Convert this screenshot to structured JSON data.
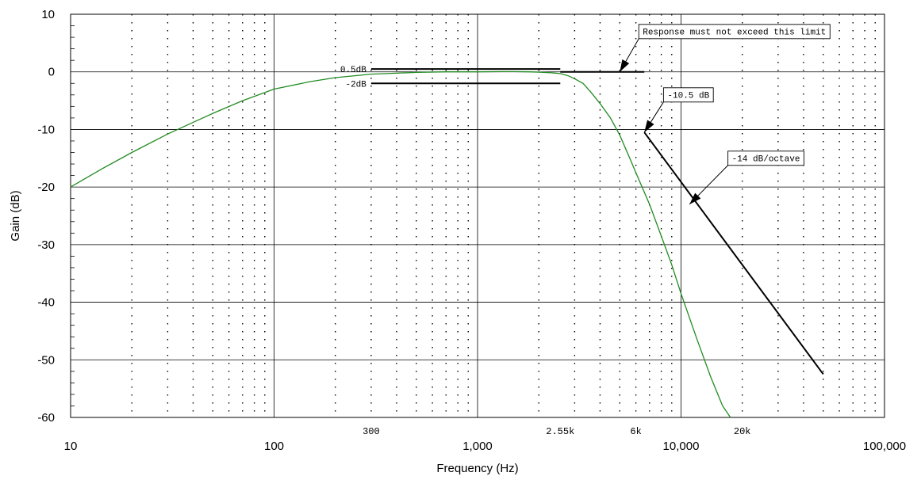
{
  "chart_data": {
    "type": "line",
    "xlabel": "Frequency (Hz)",
    "ylabel": "Gain (dB)",
    "x_scale": "log",
    "xlim": [
      10,
      100000
    ],
    "ylim": [
      -60,
      10
    ],
    "grid": true,
    "x_tick_labels": [
      {
        "value": 10,
        "label": "10"
      },
      {
        "value": 100,
        "label": "100"
      },
      {
        "value": 1000,
        "label": "1,000"
      },
      {
        "value": 10000,
        "label": "10,000"
      },
      {
        "value": 100000,
        "label": "100,000"
      }
    ],
    "y_tick_labels": [
      {
        "value": 10,
        "label": "10"
      },
      {
        "value": 0,
        "label": "0"
      },
      {
        "value": -10,
        "label": "-10"
      },
      {
        "value": -20,
        "label": "-20"
      },
      {
        "value": -30,
        "label": "-30"
      },
      {
        "value": -40,
        "label": "-40"
      },
      {
        "value": -50,
        "label": "-50"
      },
      {
        "value": -60,
        "label": "-60"
      }
    ],
    "frequency_marks": [
      {
        "value": 300,
        "label": "300"
      },
      {
        "value": 2550,
        "label": "2.55k"
      },
      {
        "value": 6000,
        "label": "6k"
      },
      {
        "value": 20000,
        "label": "20k"
      }
    ],
    "series": [
      {
        "color": "#228b22",
        "x": [
          10,
          14,
          20,
          30,
          50,
          70,
          100,
          150,
          200,
          300,
          500,
          700,
          1000,
          1300,
          1500,
          1800,
          2000,
          2300,
          2550,
          2800,
          3000,
          3300,
          3600,
          4000,
          4500,
          5000,
          5600,
          6000,
          7000,
          8000,
          9000,
          10000,
          12000,
          14000,
          16000,
          17500
        ],
        "y": [
          -20,
          -17,
          -14,
          -10.8,
          -7.2,
          -5.0,
          -3.0,
          -1.7,
          -1.0,
          -0.4,
          -0.1,
          0.0,
          0.0,
          0.05,
          0.05,
          0.0,
          -0.05,
          -0.15,
          -0.3,
          -0.7,
          -1.2,
          -2.0,
          -3.5,
          -5.5,
          -8.0,
          -11.0,
          -15.0,
          -17.5,
          -23.0,
          -28.5,
          -33.5,
          -38.5,
          -46.5,
          -53.0,
          -58.0,
          -60.0
        ]
      }
    ],
    "limit_lines": [
      {
        "x": [
          300,
          2550
        ],
        "y": [
          0.5,
          0.5
        ],
        "color": "#000000"
      },
      {
        "x": [
          300,
          2550
        ],
        "y": [
          -2,
          -2
        ],
        "color": "#000000"
      },
      {
        "x": [
          2550,
          6600
        ],
        "y": [
          0,
          0
        ],
        "color": "#000000"
      },
      {
        "x": [
          6600,
          50000
        ],
        "y": [
          -10.5,
          -52.5
        ],
        "color": "#000000"
      }
    ],
    "limit_labels": [
      {
        "text": "0.5dB",
        "x": 300,
        "y": 0.5
      },
      {
        "text": "-2dB",
        "x": 300,
        "y": -2
      }
    ],
    "annotations": [
      {
        "text": "Response must not exceed this limit",
        "target_x": 5000,
        "target_y": 0,
        "box_x": 6200,
        "box_y": 7
      },
      {
        "text": "-10.5 dB",
        "target_x": 6600,
        "target_y": -10.5,
        "box_x": 8200,
        "box_y": -4
      },
      {
        "text": "-14 dB/octave",
        "target_x": 11000,
        "target_y": -23,
        "box_x": 17000,
        "box_y": -15
      }
    ]
  }
}
